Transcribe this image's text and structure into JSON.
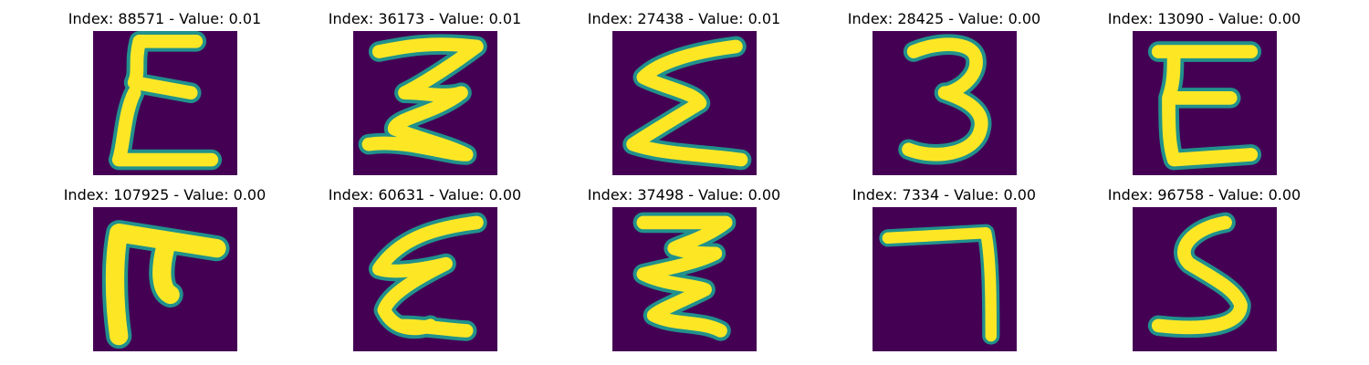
{
  "colors": {
    "background": "#440154",
    "stroke": "#fde725",
    "edge": "#21918c",
    "title_text": "#000000"
  },
  "panels": [
    {
      "title": "Index: 88571 - Value: 0.01",
      "glyph": "E-like character"
    },
    {
      "title": "Index: 36173 - Value: 0.01",
      "glyph": "3-like character"
    },
    {
      "title": "Index: 27438 - Value: 0.01",
      "glyph": "sigma-like character"
    },
    {
      "title": "Index: 28425 - Value: 0.00",
      "glyph": "3"
    },
    {
      "title": "Index: 13090 - Value: 0.00",
      "glyph": "E"
    },
    {
      "title": "Index: 107925 - Value: 0.00",
      "glyph": "F-like character"
    },
    {
      "title": "Index: 60631 - Value: 0.00",
      "glyph": "epsilon-like character"
    },
    {
      "title": "Index: 37498 - Value: 0.00",
      "glyph": "zigzag character"
    },
    {
      "title": "Index: 7334 - Value: 0.00",
      "glyph": "7"
    },
    {
      "title": "Index: 96758 - Value: 0.00",
      "glyph": "5"
    }
  ]
}
